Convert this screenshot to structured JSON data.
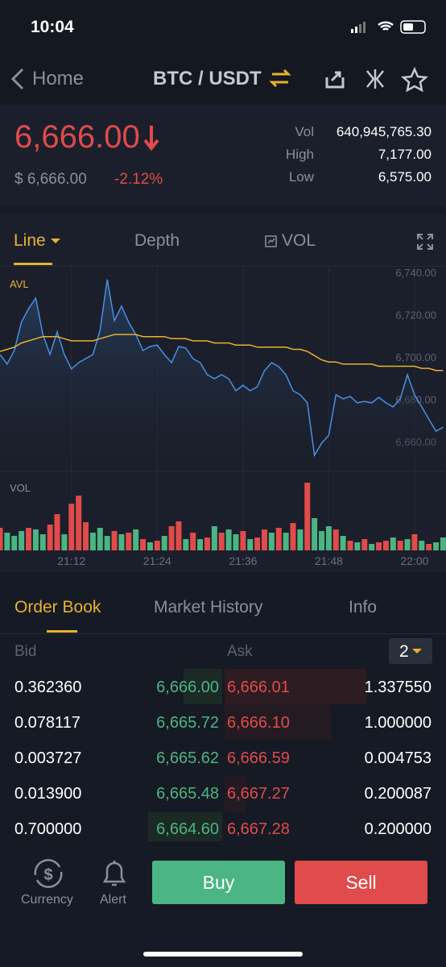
{
  "status": {
    "time": "10:04"
  },
  "nav": {
    "back": "Home",
    "pair": "BTC / USDT"
  },
  "ticker": {
    "price": "6,666.00",
    "usd": "$ 6,666.00",
    "change": "-2.12%",
    "stats": [
      {
        "label": "Vol",
        "value": "640,945,765.30"
      },
      {
        "label": "High",
        "value": "7,177.00"
      },
      {
        "label": "Low",
        "value": "6,575.00"
      }
    ]
  },
  "chart_tabs": [
    "Line",
    "Depth",
    "VOL"
  ],
  "chart_data": {
    "type": "line",
    "x": [
      1262,
      1263,
      1264,
      1265,
      1266,
      1267,
      1268,
      1269,
      1270,
      1271,
      1272,
      1273,
      1274,
      1275,
      1276,
      1277,
      1278,
      1279,
      1280,
      1281,
      1282,
      1283,
      1284,
      1285,
      1286,
      1287,
      1288,
      1289,
      1290,
      1291,
      1292,
      1293,
      1294,
      1295,
      1296,
      1297,
      1298,
      1299,
      1300,
      1301,
      1302,
      1303,
      1304,
      1305,
      1306,
      1307,
      1308,
      1309,
      1310,
      1311,
      1312,
      1313,
      1314,
      1315,
      1316,
      1317,
      1318,
      1319,
      1320,
      1321,
      1322,
      1323,
      1324
    ],
    "series": [
      {
        "color": "#4a90e2",
        "values": [
          6701.5,
          6697,
          6703.4,
          6716.8,
          6723.2,
          6728.2,
          6711,
          6701.5,
          6712.2,
          6701.5,
          6694.7,
          6697.7,
          6699.6,
          6701.5,
          6713,
          6737,
          6717.5,
          6724.4,
          6716.8,
          6711,
          6703.4,
          6705.3,
          6706,
          6701.5,
          6697.7,
          6705.3,
          6704.6,
          6699.6,
          6697.7,
          6692,
          6690.1,
          6692,
          6690.1,
          6684.4,
          6687,
          6684.4,
          6686.3,
          6693.9,
          6697.7,
          6695.8,
          6692,
          6684.4,
          6682.5,
          6678.7,
          6653.9,
          6659.6,
          6663.4,
          6682.5,
          6680.6,
          6681.7,
          6678.7,
          6679.4,
          6678.7,
          6681.3,
          6678.7,
          6676.8,
          6680.6,
          6692,
          6682.5,
          6676.8,
          6671,
          6665.3,
          6667.2
        ]
      },
      {
        "name": "AVL",
        "color": "#e8b130",
        "values": [
          6703,
          6704,
          6705,
          6707,
          6708,
          6709,
          6710,
          6710,
          6710,
          6709,
          6708,
          6708,
          6708,
          6708,
          6709,
          6710,
          6711,
          6711,
          6711,
          6711,
          6710,
          6710,
          6710,
          6710,
          6709,
          6709,
          6709,
          6708,
          6708,
          6708,
          6707,
          6707,
          6707,
          6706,
          6706,
          6706,
          6705,
          6705,
          6705,
          6705,
          6705,
          6704,
          6704,
          6703,
          6701,
          6699,
          6698,
          6698,
          6697,
          6697,
          6697,
          6697,
          6697,
          6696,
          6696,
          6696,
          6696,
          6696,
          6696,
          6695,
          6695,
          6694,
          6694
        ]
      }
    ],
    "xlim": [
      1262,
      1324.4
    ],
    "xticks": [
      {
        "value": 1272,
        "label": "21:12"
      },
      {
        "value": 1284,
        "label": "21:24"
      },
      {
        "value": 1296,
        "label": "21:36"
      },
      {
        "value": 1308,
        "label": "21:48"
      },
      {
        "value": 1320,
        "label": "22:00"
      }
    ],
    "ylim": [
      6652,
      6743.4
    ],
    "yticks": [
      {
        "value": 6740,
        "label": "6,740.00"
      },
      {
        "value": 6720,
        "label": "6,720.00"
      },
      {
        "value": 6700,
        "label": "6,700.00"
      },
      {
        "value": 6680,
        "label": "6,680.00"
      },
      {
        "value": 6660,
        "label": "6,660.00"
      }
    ],
    "grid": true,
    "volume": {
      "label": "VOL",
      "ylim": [
        0,
        100
      ],
      "values": [
        28,
        22,
        18,
        24,
        28,
        26,
        20,
        32,
        45,
        20,
        58,
        68,
        35,
        22,
        28,
        18,
        24,
        20,
        22,
        26,
        14,
        10,
        12,
        18,
        30,
        36,
        14,
        22,
        14,
        16,
        30,
        22,
        26,
        20,
        24,
        14,
        16,
        26,
        22,
        28,
        22,
        34,
        26,
        84,
        40,
        24,
        30,
        26,
        18,
        12,
        10,
        14,
        8,
        10,
        12,
        16,
        12,
        14,
        20,
        12,
        8,
        10,
        16
      ],
      "colors": [
        "#e04b4b",
        "#4bb583",
        "#4bb583",
        "#4bb583",
        "#e04b4b",
        "#4bb583",
        "#4bb583",
        "#e04b4b",
        "#e04b4b",
        "#4bb583",
        "#e04b4b",
        "#e04b4b",
        "#e04b4b",
        "#4bb583",
        "#4bb583",
        "#4bb583",
        "#e04b4b",
        "#4bb583",
        "#e04b4b",
        "#4bb583",
        "#e04b4b",
        "#4bb583",
        "#e04b4b",
        "#4bb583",
        "#e04b4b",
        "#e04b4b",
        "#4bb583",
        "#e04b4b",
        "#4bb583",
        "#e04b4b",
        "#4bb583",
        "#e04b4b",
        "#4bb583",
        "#4bb583",
        "#e04b4b",
        "#4bb583",
        "#e04b4b",
        "#e04b4b",
        "#4bb583",
        "#e04b4b",
        "#4bb583",
        "#e04b4b",
        "#4bb583",
        "#e04b4b",
        "#4bb583",
        "#4bb583",
        "#4bb583",
        "#e04b4b",
        "#4bb583",
        "#e04b4b",
        "#4bb583",
        "#e04b4b",
        "#4bb583",
        "#e04b4b",
        "#e04b4b",
        "#4bb583",
        "#e04b4b",
        "#4bb583",
        "#e04b4b",
        "#4bb583",
        "#e04b4b",
        "#4bb583",
        "#4bb583"
      ]
    }
  },
  "book_tabs": [
    "Order Book",
    "Market History",
    "Info"
  ],
  "book": {
    "bid": "Bid",
    "ask": "Ask",
    "precision": "2",
    "rows": [
      [
        "0.362360",
        "6,666.00",
        "6,666.01",
        "1.337550"
      ],
      [
        "0.078117",
        "6,665.72",
        "6,666.10",
        "1.000000"
      ],
      [
        "0.003727",
        "6,665.62",
        "6,666.59",
        "0.004753"
      ],
      [
        "0.013900",
        "6,665.48",
        "6,667.27",
        "0.200087"
      ],
      [
        "0.700000",
        "6,664.60",
        "6,667.28",
        "0.200000"
      ]
    ]
  },
  "footer": {
    "currency": "Currency",
    "alert": "Alert",
    "buy": "Buy",
    "sell": "Sell"
  }
}
